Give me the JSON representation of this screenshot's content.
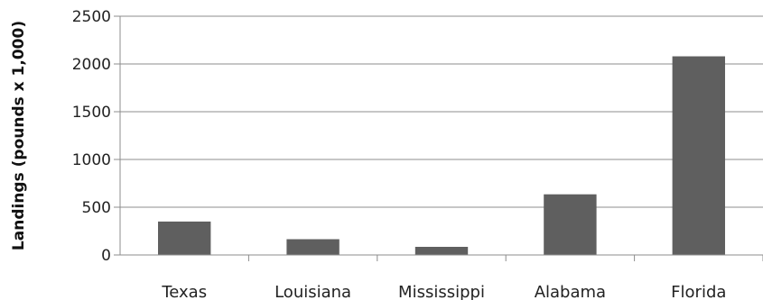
{
  "chart_data": {
    "type": "bar",
    "title": "",
    "xlabel": "",
    "ylabel": "Landings (pounds x 1,000)",
    "categories": [
      "Texas",
      "Louisiana",
      "Mississippi",
      "Alabama",
      "Florida"
    ],
    "values": [
      350,
      165,
      85,
      635,
      2080
    ],
    "ylim": [
      0,
      2500
    ],
    "yticks": [
      "0",
      "500",
      "1000",
      "1500",
      "2000",
      "2500"
    ],
    "grid": true,
    "legend": "none",
    "bar_color": "#5f5f5f",
    "grid_color": "#8c8c8c"
  }
}
